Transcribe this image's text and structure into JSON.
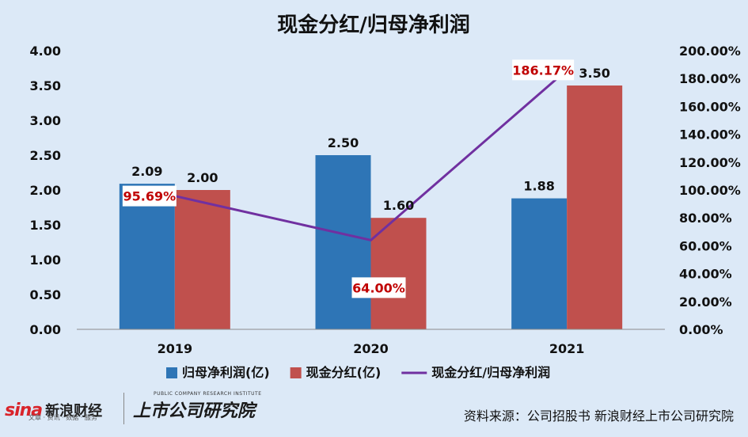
{
  "chart_data": {
    "type": "bar",
    "title": "现金分红/归母净利润",
    "categories": [
      "2019",
      "2020",
      "2021"
    ],
    "series": [
      {
        "name": "归母净利润(亿)",
        "kind": "bar",
        "axis": "left",
        "color": "#2e75b6",
        "values": [
          2.09,
          2.5,
          1.88
        ],
        "labels": [
          "2.09",
          "2.50",
          "1.88"
        ]
      },
      {
        "name": "现金分红(亿)",
        "kind": "bar",
        "axis": "left",
        "color": "#c0504d",
        "values": [
          2.0,
          1.6,
          3.5
        ],
        "labels": [
          "2.00",
          "1.60",
          "3.50"
        ]
      },
      {
        "name": "现金分红/归母净利润",
        "kind": "line",
        "axis": "right",
        "color": "#7030a0",
        "values": [
          95.69,
          64.0,
          186.17
        ],
        "labels": [
          "95.69%",
          "64.00%",
          "186.17%"
        ]
      }
    ],
    "ylim_left": [
      0,
      4
    ],
    "ylim_right": [
      0,
      200
    ],
    "left_ticks": [
      "0.00",
      "0.50",
      "1.00",
      "1.50",
      "2.00",
      "2.50",
      "3.00",
      "3.50",
      "4.00"
    ],
    "right_ticks": [
      "0.00%",
      "20.00%",
      "40.00%",
      "60.00%",
      "80.00%",
      "100.00%",
      "120.00%",
      "140.00%",
      "160.00%",
      "180.00%",
      "200.00%"
    ],
    "grid": false,
    "legend_position": "bottom",
    "label_color": "#c00000"
  },
  "footer": {
    "sina_logo": "sina",
    "sina_cn": "新浪财经",
    "sina_sub": "文章 · 资讯 · 数据 · 服务",
    "brand_small": "PUBLIC COMPANY RESEARCH INSTITUTE",
    "brand_big": "上市公司研究院",
    "source": "资料来源：公司招股书 新浪财经上市公司研究院"
  }
}
